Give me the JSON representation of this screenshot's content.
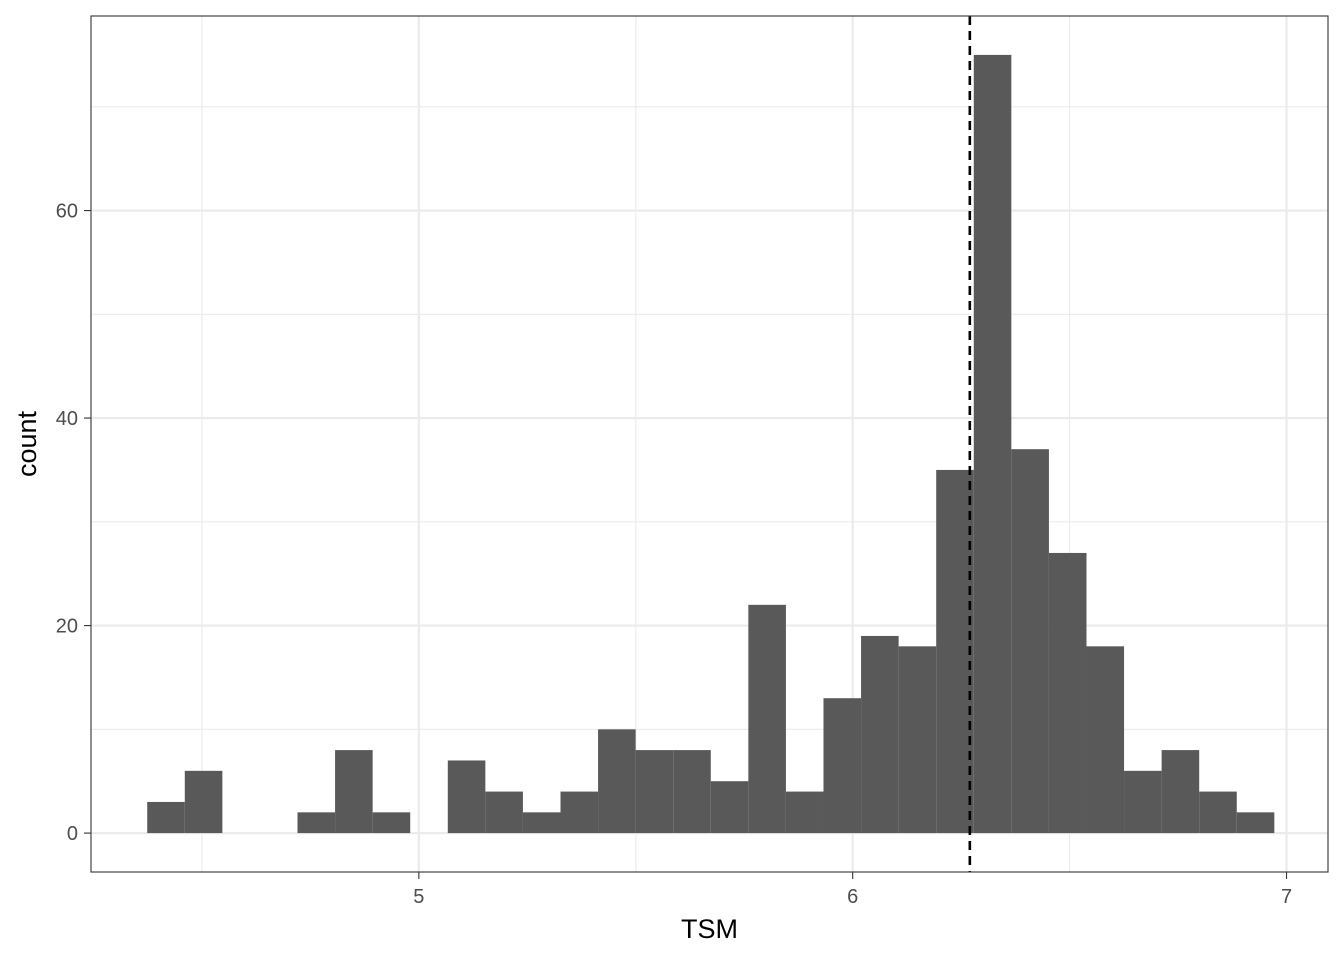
{
  "chart_data": {
    "type": "bar",
    "subtype": "histogram",
    "title": "",
    "xlabel": "TSM",
    "ylabel": "count",
    "xlim": [
      4.2443,
      7.0956
    ],
    "ylim": [
      -3.75,
      78.75
    ],
    "x_ticks": [
      5,
      6,
      7
    ],
    "y_ticks": [
      0,
      20,
      40,
      60
    ],
    "x_minor_gridlines": [
      4.5,
      5.5,
      6.5
    ],
    "y_minor_gridlines": [
      10,
      30,
      50,
      70
    ],
    "bin_width": 0.0866,
    "bins": [
      {
        "x0": 4.3739,
        "x1": 4.4605,
        "count": 3
      },
      {
        "x0": 4.4605,
        "x1": 4.5471,
        "count": 6
      },
      {
        "x0": 4.5471,
        "x1": 4.6337,
        "count": 0
      },
      {
        "x0": 4.6337,
        "x1": 4.7203,
        "count": 0
      },
      {
        "x0": 4.7203,
        "x1": 4.8069,
        "count": 2
      },
      {
        "x0": 4.8069,
        "x1": 4.8935,
        "count": 8
      },
      {
        "x0": 4.8935,
        "x1": 4.9801,
        "count": 2
      },
      {
        "x0": 4.9801,
        "x1": 5.0667,
        "count": 0
      },
      {
        "x0": 5.0667,
        "x1": 5.1533,
        "count": 7
      },
      {
        "x0": 5.1533,
        "x1": 5.2399,
        "count": 4
      },
      {
        "x0": 5.2399,
        "x1": 5.3265,
        "count": 2
      },
      {
        "x0": 5.3265,
        "x1": 5.4131,
        "count": 4
      },
      {
        "x0": 5.4131,
        "x1": 5.4997,
        "count": 10
      },
      {
        "x0": 5.4997,
        "x1": 5.5863,
        "count": 8
      },
      {
        "x0": 5.5863,
        "x1": 5.6729,
        "count": 8
      },
      {
        "x0": 5.6729,
        "x1": 5.7595,
        "count": 5
      },
      {
        "x0": 5.7595,
        "x1": 5.8461,
        "count": 22
      },
      {
        "x0": 5.8461,
        "x1": 5.9327,
        "count": 4
      },
      {
        "x0": 5.9327,
        "x1": 6.0193,
        "count": 13
      },
      {
        "x0": 6.0193,
        "x1": 6.1059,
        "count": 19
      },
      {
        "x0": 6.1059,
        "x1": 6.1925,
        "count": 18
      },
      {
        "x0": 6.1925,
        "x1": 6.2791,
        "count": 35
      },
      {
        "x0": 6.2791,
        "x1": 6.3657,
        "count": 75
      },
      {
        "x0": 6.3657,
        "x1": 6.4523,
        "count": 37
      },
      {
        "x0": 6.4523,
        "x1": 6.5389,
        "count": 27
      },
      {
        "x0": 6.5389,
        "x1": 6.6255,
        "count": 18
      },
      {
        "x0": 6.6255,
        "x1": 6.7121,
        "count": 6
      },
      {
        "x0": 6.7121,
        "x1": 6.7987,
        "count": 8
      },
      {
        "x0": 6.7987,
        "x1": 6.8853,
        "count": 4
      },
      {
        "x0": 6.8853,
        "x1": 6.9719,
        "count": 2
      }
    ],
    "vline": {
      "x": 6.27,
      "style": "dashed",
      "color": "#000000"
    },
    "bar_color": "#595959",
    "grid": true,
    "grid_color": "#ebebeb",
    "panel_border_color": "#333333",
    "legend": "none"
  }
}
